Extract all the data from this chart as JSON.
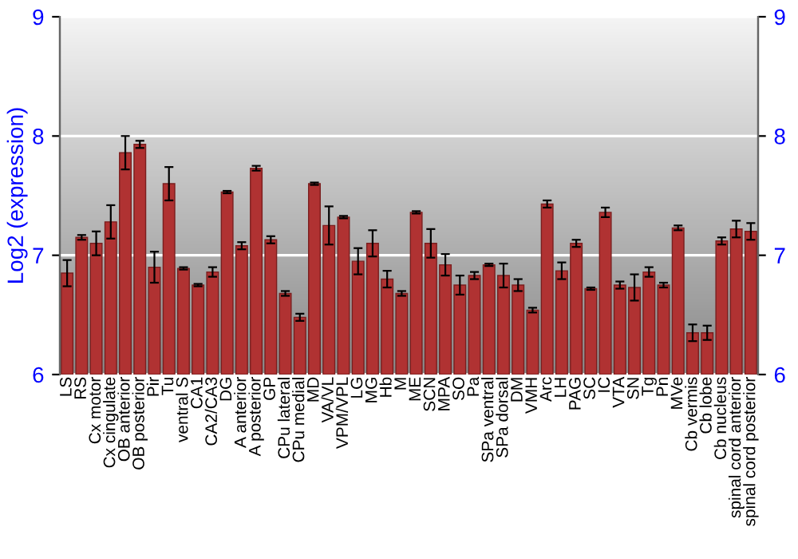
{
  "chart_data": {
    "type": "bar",
    "ylabel": "Log2 (expression)",
    "categories": [
      "LS",
      "RS",
      "Cx motor",
      "Cx cingulate",
      "OB anterior",
      "OB posterior",
      "Pir",
      "Tu",
      "ventral S",
      "CA1",
      "CA2/CA3",
      "DG",
      "A anterior",
      "A posterior",
      "GP",
      "CPu lateral",
      "CPu medial",
      "MD",
      "VA/VL",
      "VPM/VPL",
      "LG",
      "MG",
      "Hb",
      "M",
      "ME",
      "SCN",
      "MPA",
      "SO",
      "Pa",
      "SPa ventral",
      "SPa dorsal",
      "DM",
      "VMH",
      "Arc",
      "LH",
      "PAG",
      "SC",
      "IC",
      "VTA",
      "SN",
      "Tg",
      "Pn",
      "MVe",
      "Cb vermis",
      "Cb lobe",
      "Cb nucleus",
      "spinal cord anterior",
      "spinal cord posterior"
    ],
    "values": [
      6.85,
      7.15,
      7.1,
      7.28,
      7.86,
      7.93,
      6.9,
      7.6,
      6.89,
      6.75,
      6.86,
      7.53,
      7.08,
      7.73,
      7.13,
      6.68,
      6.48,
      7.6,
      7.25,
      7.32,
      6.95,
      7.1,
      6.8,
      6.68,
      7.36,
      7.1,
      6.92,
      6.75,
      6.83,
      6.92,
      6.83,
      6.75,
      6.54,
      7.43,
      6.87,
      7.1,
      6.72,
      7.36,
      6.75,
      6.73,
      6.86,
      6.75,
      7.23,
      6.35,
      6.35,
      7.12,
      7.22,
      7.2
    ],
    "errors": [
      0.11,
      0.02,
      0.1,
      0.14,
      0.14,
      0.03,
      0.13,
      0.14,
      0.01,
      0.01,
      0.04,
      0.01,
      0.03,
      0.02,
      0.03,
      0.02,
      0.03,
      0.01,
      0.16,
      0.01,
      0.11,
      0.11,
      0.07,
      0.02,
      0.01,
      0.12,
      0.09,
      0.08,
      0.03,
      0.01,
      0.1,
      0.05,
      0.02,
      0.03,
      0.07,
      0.03,
      0.01,
      0.04,
      0.03,
      0.11,
      0.04,
      0.02,
      0.02,
      0.07,
      0.06,
      0.03,
      0.07,
      0.07
    ],
    "color": "#b03232",
    "ylim": [
      6,
      9
    ],
    "yticks": [
      6,
      7,
      8,
      9
    ],
    "y2lim": [
      6,
      9
    ],
    "y2ticks": [
      6,
      7,
      8,
      9
    ],
    "grid": "y"
  }
}
